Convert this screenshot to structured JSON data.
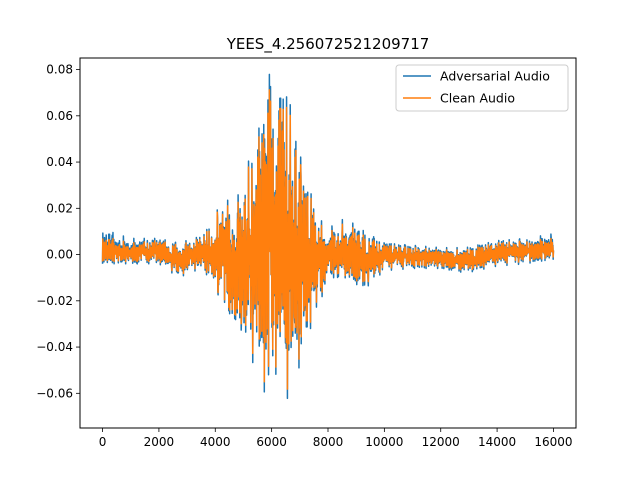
{
  "chart_data": {
    "type": "line",
    "title": "YEES_4.256072521209717",
    "xlabel": "",
    "ylabel": "",
    "xlim": [
      -800,
      16800
    ],
    "ylim": [
      -0.075,
      0.085
    ],
    "x_ticks": [
      0,
      2000,
      4000,
      6000,
      8000,
      10000,
      12000,
      14000,
      16000
    ],
    "x_tick_labels": [
      "0",
      "2000",
      "4000",
      "6000",
      "8000",
      "10000",
      "12000",
      "14000",
      "16000"
    ],
    "y_ticks": [
      -0.06,
      -0.04,
      -0.02,
      0.0,
      0.02,
      0.04,
      0.06,
      0.08
    ],
    "y_tick_labels": [
      "−0.06",
      "−0.04",
      "−0.02",
      "0.00",
      "0.02",
      "0.04",
      "0.06",
      "0.08"
    ],
    "grid": false,
    "legend_position": "top-right",
    "x_range": [
      0,
      16000
    ],
    "series": [
      {
        "name": "Adversarial Audio",
        "color": "#1f77b4",
        "envelope": [
          {
            "x": 0,
            "max": 0.011,
            "min": -0.004
          },
          {
            "x": 1000,
            "max": 0.007,
            "min": -0.004
          },
          {
            "x": 2000,
            "max": 0.007,
            "min": -0.004
          },
          {
            "x": 2700,
            "max": 0.005,
            "min": -0.01
          },
          {
            "x": 3500,
            "max": 0.008,
            "min": -0.006
          },
          {
            "x": 3850,
            "max": 0.013,
            "min": -0.011
          },
          {
            "x": 4200,
            "max": 0.023,
            "min": -0.02
          },
          {
            "x": 4700,
            "max": 0.024,
            "min": -0.029
          },
          {
            "x": 5000,
            "max": 0.029,
            "min": -0.034
          },
          {
            "x": 5300,
            "max": 0.048,
            "min": -0.046
          },
          {
            "x": 5600,
            "max": 0.056,
            "min": -0.053
          },
          {
            "x": 5950,
            "max": 0.08,
            "min": -0.069
          },
          {
            "x": 6100,
            "max": 0.06,
            "min": -0.05
          },
          {
            "x": 6500,
            "max": 0.076,
            "min": -0.064
          },
          {
            "x": 6900,
            "max": 0.048,
            "min": -0.052
          },
          {
            "x": 7300,
            "max": 0.03,
            "min": -0.035
          },
          {
            "x": 7700,
            "max": 0.015,
            "min": -0.02
          },
          {
            "x": 8200,
            "max": 0.012,
            "min": -0.01
          },
          {
            "x": 8600,
            "max": 0.016,
            "min": -0.01
          },
          {
            "x": 9300,
            "max": 0.01,
            "min": -0.015
          },
          {
            "x": 10000,
            "max": 0.005,
            "min": -0.007
          },
          {
            "x": 11000,
            "max": 0.004,
            "min": -0.006
          },
          {
            "x": 12000,
            "max": 0.003,
            "min": -0.006
          },
          {
            "x": 12900,
            "max": 0.003,
            "min": -0.008
          },
          {
            "x": 14000,
            "max": 0.006,
            "min": -0.005
          },
          {
            "x": 15000,
            "max": 0.007,
            "min": -0.004
          },
          {
            "x": 16000,
            "max": 0.009,
            "min": -0.002
          }
        ]
      },
      {
        "name": "Clean Audio",
        "color": "#ff7f0e",
        "envelope": [
          {
            "x": 0,
            "max": 0.008,
            "min": -0.003
          },
          {
            "x": 1000,
            "max": 0.005,
            "min": -0.003
          },
          {
            "x": 2000,
            "max": 0.006,
            "min": -0.003
          },
          {
            "x": 2700,
            "max": 0.004,
            "min": -0.009
          },
          {
            "x": 3500,
            "max": 0.007,
            "min": -0.005
          },
          {
            "x": 3850,
            "max": 0.012,
            "min": -0.01
          },
          {
            "x": 4200,
            "max": 0.022,
            "min": -0.019
          },
          {
            "x": 4700,
            "max": 0.02,
            "min": -0.027
          },
          {
            "x": 5000,
            "max": 0.027,
            "min": -0.031
          },
          {
            "x": 5300,
            "max": 0.045,
            "min": -0.042
          },
          {
            "x": 5600,
            "max": 0.052,
            "min": -0.049
          },
          {
            "x": 5950,
            "max": 0.073,
            "min": -0.064
          },
          {
            "x": 6100,
            "max": 0.056,
            "min": -0.047
          },
          {
            "x": 6500,
            "max": 0.071,
            "min": -0.06
          },
          {
            "x": 6900,
            "max": 0.044,
            "min": -0.048
          },
          {
            "x": 7300,
            "max": 0.028,
            "min": -0.032
          },
          {
            "x": 7700,
            "max": 0.013,
            "min": -0.018
          },
          {
            "x": 8200,
            "max": 0.01,
            "min": -0.008
          },
          {
            "x": 8600,
            "max": 0.014,
            "min": -0.009
          },
          {
            "x": 9300,
            "max": 0.008,
            "min": -0.013
          },
          {
            "x": 10000,
            "max": 0.004,
            "min": -0.006
          },
          {
            "x": 11000,
            "max": 0.003,
            "min": -0.005
          },
          {
            "x": 12000,
            "max": 0.002,
            "min": -0.005
          },
          {
            "x": 12900,
            "max": 0.002,
            "min": -0.007
          },
          {
            "x": 14000,
            "max": 0.005,
            "min": -0.004
          },
          {
            "x": 15000,
            "max": 0.006,
            "min": -0.003
          },
          {
            "x": 16000,
            "max": 0.007,
            "min": -0.001
          }
        ]
      }
    ]
  }
}
